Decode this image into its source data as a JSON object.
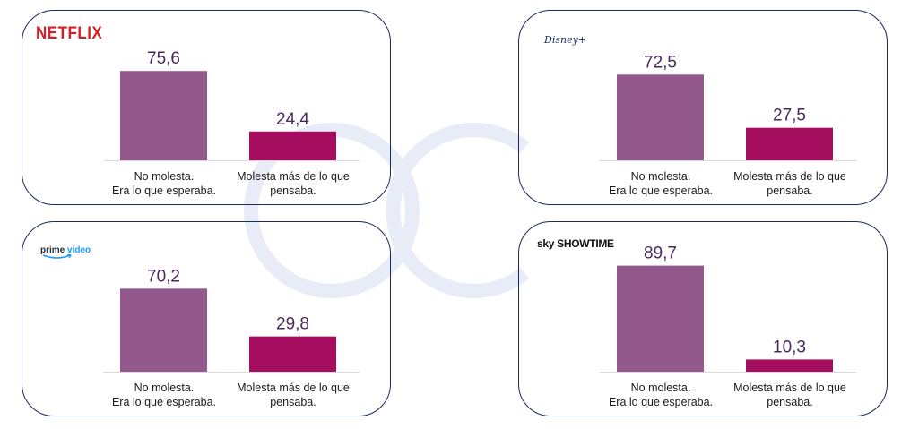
{
  "logos": {
    "netflix": "NETFLIX",
    "disney": "Disney+",
    "prime_a": "prime",
    "prime_b": "video",
    "sky": "sky SHOWTIME"
  },
  "colors": {
    "bar_primary": "#94598c",
    "bar_secondary": "#a50d5e",
    "panel_border": "#1b2a5c"
  },
  "chart_data": [
    {
      "type": "bar",
      "panel": "netflix",
      "categories": [
        "No molesta.\nEra lo que esperaba.",
        "Molesta más de lo que\npensaba."
      ],
      "values": [
        75.6,
        24.4
      ],
      "value_labels": [
        "75,6",
        "24,4"
      ],
      "ylim": [
        0,
        100
      ]
    },
    {
      "type": "bar",
      "panel": "disney",
      "categories": [
        "No molesta.\nEra lo que esperaba.",
        "Molesta más de lo que\npensaba."
      ],
      "values": [
        72.5,
        27.5
      ],
      "value_labels": [
        "72,5",
        "27,5"
      ],
      "ylim": [
        0,
        100
      ]
    },
    {
      "type": "bar",
      "panel": "prime",
      "categories": [
        "No molesta.\nEra lo que esperaba.",
        "Molesta más de lo que\npensaba."
      ],
      "values": [
        70.2,
        29.8
      ],
      "value_labels": [
        "70,2",
        "29,8"
      ],
      "ylim": [
        0,
        100
      ]
    },
    {
      "type": "bar",
      "panel": "sky",
      "categories": [
        "No molesta.\nEra lo que esperaba.",
        "Molesta más de lo que\npensaba."
      ],
      "values": [
        89.7,
        10.3
      ],
      "value_labels": [
        "89,7",
        "10,3"
      ],
      "ylim": [
        0,
        100
      ]
    }
  ]
}
